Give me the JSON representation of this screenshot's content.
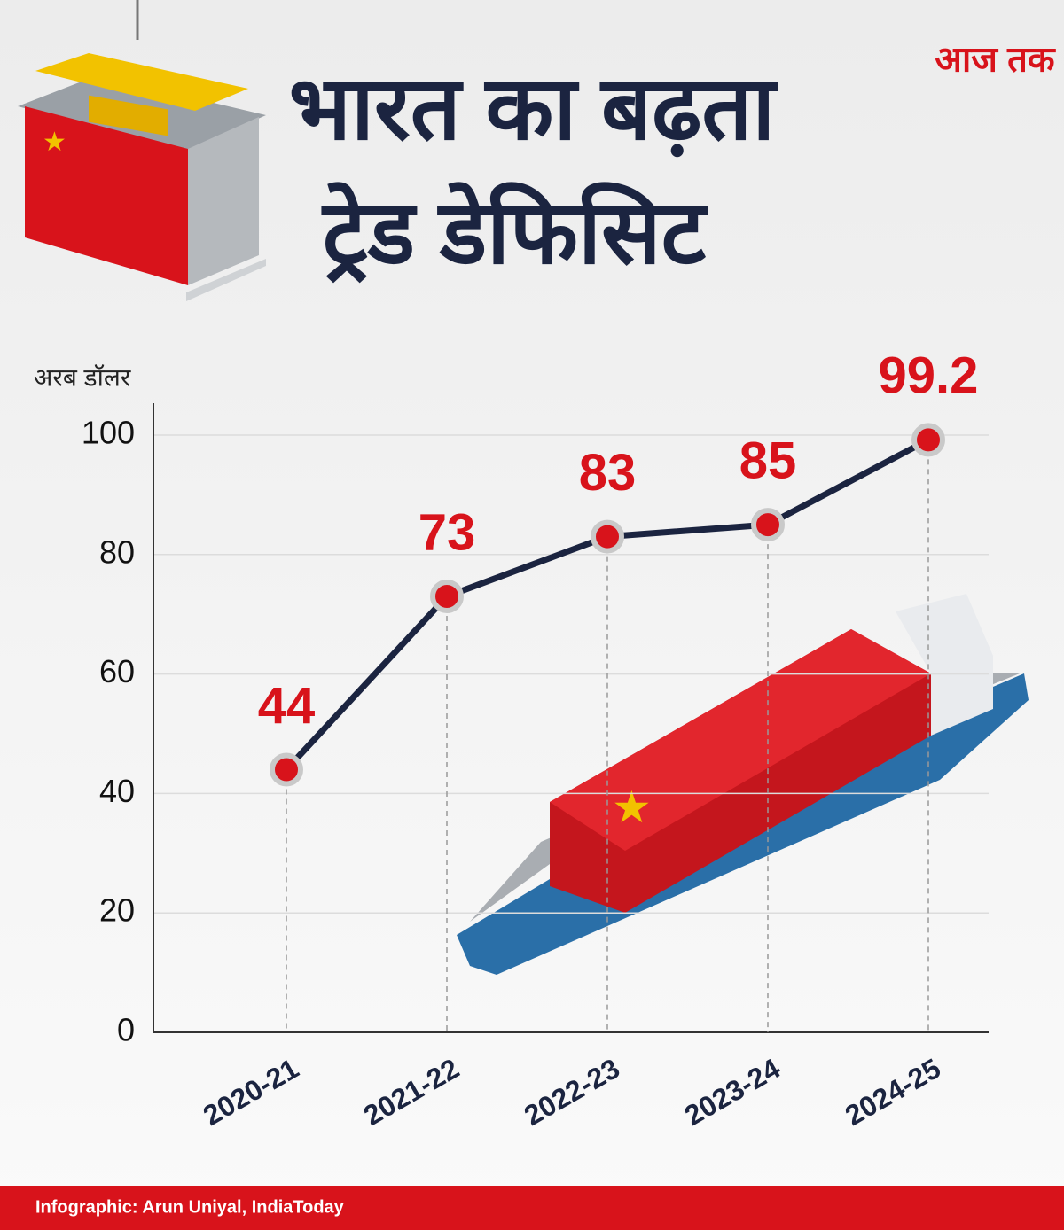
{
  "chart_data": {
    "type": "line",
    "title_lines": [
      "भारत का बढ़ता",
      "ट्रेड डेफिसिट"
    ],
    "logo": "आज तक",
    "ylabel": "अरब डॉलर",
    "categories": [
      "2020-21",
      "2021-22",
      "2022-23",
      "2023-24",
      "2024-25"
    ],
    "values": [
      44,
      73,
      83,
      85,
      99.2
    ],
    "color": "#1b2440",
    "marker_color": "#d8131b",
    "ylim": [
      0,
      100
    ],
    "yticks": [
      0,
      20,
      40,
      60,
      80,
      100
    ],
    "grid": true,
    "source": "Infographic: Arun Uniyal, IndiaToday"
  }
}
